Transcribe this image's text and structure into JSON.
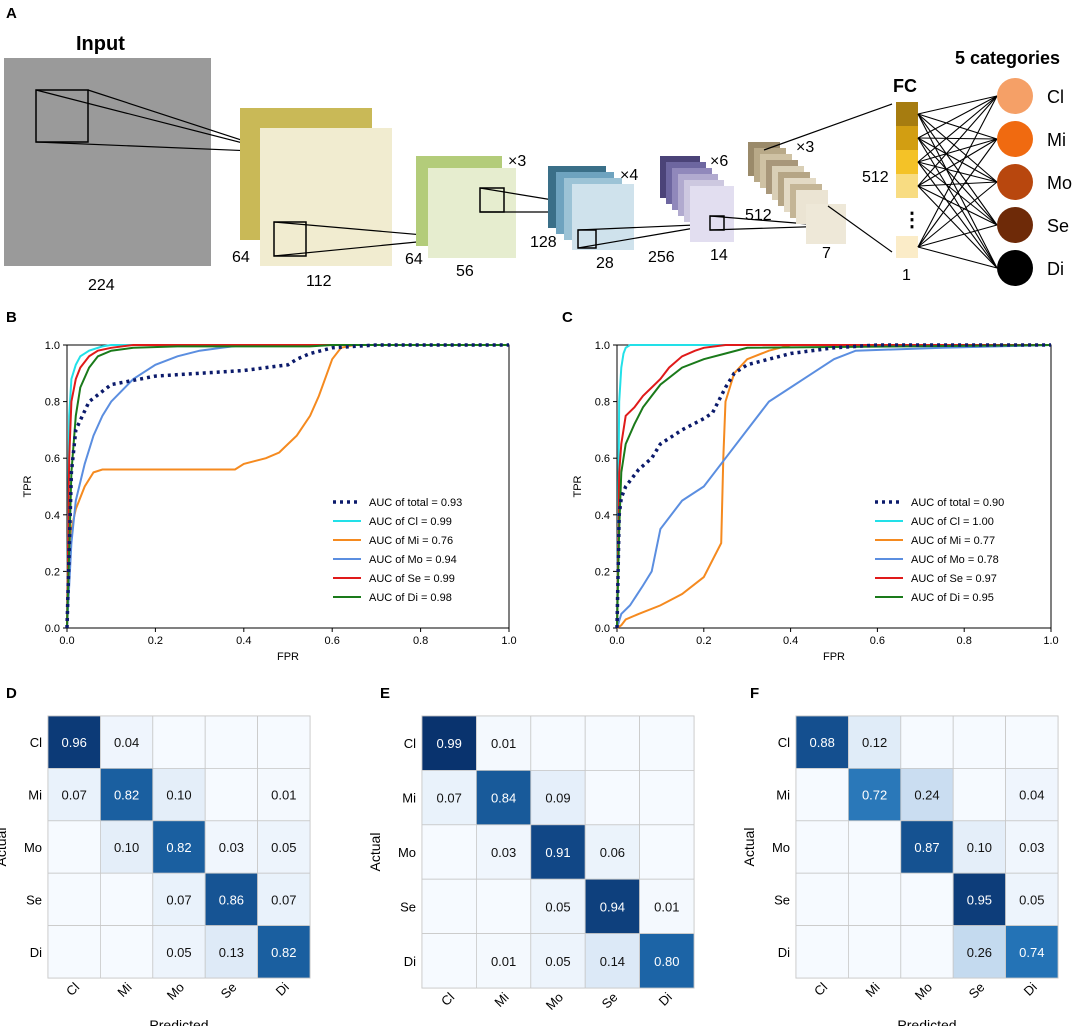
{
  "panels": {
    "A": "A",
    "B": "B",
    "C": "C",
    "D": "D",
    "E": "E",
    "F": "F"
  },
  "architecture": {
    "input_label": "Input",
    "input_size": "224",
    "blocks": [
      {
        "channels": "64",
        "size": "112",
        "mult": ""
      },
      {
        "channels": "64",
        "size": "56",
        "mult": "×3"
      },
      {
        "channels": "128",
        "size": "28",
        "mult": "×4"
      },
      {
        "channels": "256",
        "size": "14",
        "mult": "×6"
      },
      {
        "channels": "512",
        "size": "7",
        "mult": "×3"
      }
    ],
    "fc_label": "FC",
    "fc_top": "512",
    "fc_bottom": "1",
    "fc_dots": "⋮",
    "output_title": "5 categories",
    "outputs": [
      {
        "label": "Cl",
        "color": "#f5a067"
      },
      {
        "label": "Mi",
        "color": "#f06a10"
      },
      {
        "label": "Mo",
        "color": "#b8470e"
      },
      {
        "label": "Se",
        "color": "#6e2a08"
      },
      {
        "label": "Di",
        "color": "#000000"
      }
    ]
  },
  "chart_data": [
    {
      "type": "line",
      "panel": "B",
      "xlabel": "FPR",
      "ylabel": "TPR",
      "xlim": [
        0,
        1
      ],
      "ylim": [
        0,
        1
      ],
      "xticks": [
        "0.0",
        "0.2",
        "0.4",
        "0.6",
        "0.8",
        "1.0"
      ],
      "yticks": [
        "0.0",
        "0.2",
        "0.4",
        "0.6",
        "0.8",
        "1.0"
      ],
      "legend_position": "lower-right",
      "series": [
        {
          "name": "AUC of total = 0.93",
          "color": "#0b1a6b",
          "dashed": true,
          "x": [
            0,
            0.01,
            0.02,
            0.05,
            0.1,
            0.2,
            0.3,
            0.4,
            0.45,
            0.5,
            0.52,
            0.55,
            0.6,
            0.7,
            1.0
          ],
          "y": [
            0,
            0.55,
            0.7,
            0.8,
            0.86,
            0.89,
            0.9,
            0.91,
            0.92,
            0.93,
            0.95,
            0.97,
            0.99,
            1.0,
            1.0
          ]
        },
        {
          "name": "AUC of Cl  = 0.99",
          "color": "#22e0e8",
          "dashed": false,
          "x": [
            0,
            0.005,
            0.01,
            0.02,
            0.03,
            0.05,
            0.08,
            0.1,
            1.0
          ],
          "y": [
            0,
            0.75,
            0.88,
            0.93,
            0.96,
            0.98,
            0.995,
            1.0,
            1.0
          ]
        },
        {
          "name": "AUC of Mi  = 0.76",
          "color": "#f58a1f",
          "dashed": false,
          "x": [
            0,
            0.005,
            0.01,
            0.02,
            0.04,
            0.06,
            0.08,
            0.38,
            0.4,
            0.45,
            0.48,
            0.5,
            0.52,
            0.55,
            0.57,
            0.6,
            0.62,
            0.65,
            1.0
          ],
          "y": [
            0,
            0.22,
            0.35,
            0.42,
            0.5,
            0.55,
            0.56,
            0.56,
            0.58,
            0.6,
            0.62,
            0.65,
            0.68,
            0.75,
            0.82,
            0.95,
            0.99,
            1.0,
            1.0
          ]
        },
        {
          "name": "AUC of Mo  = 0.94",
          "color": "#5b8ee0",
          "dashed": false,
          "x": [
            0,
            0.01,
            0.02,
            0.04,
            0.06,
            0.08,
            0.1,
            0.15,
            0.2,
            0.25,
            0.3,
            0.35,
            0.4,
            1.0
          ],
          "y": [
            0,
            0.3,
            0.45,
            0.58,
            0.68,
            0.75,
            0.8,
            0.88,
            0.93,
            0.96,
            0.98,
            0.99,
            1.0,
            1.0
          ]
        },
        {
          "name": "AUC of Se  = 0.99",
          "color": "#e01a1a",
          "dashed": false,
          "x": [
            0,
            0.005,
            0.01,
            0.02,
            0.03,
            0.05,
            0.07,
            0.1,
            0.15,
            0.18,
            1.0
          ],
          "y": [
            0,
            0.6,
            0.8,
            0.88,
            0.92,
            0.96,
            0.98,
            0.99,
            1.0,
            1.0,
            1.0
          ]
        },
        {
          "name": "AUC of Di  = 0.98",
          "color": "#1a7a1a",
          "dashed": false,
          "x": [
            0,
            0.01,
            0.02,
            0.03,
            0.05,
            0.07,
            0.1,
            0.15,
            0.25,
            0.4,
            0.55,
            0.6,
            1.0
          ],
          "y": [
            0,
            0.55,
            0.75,
            0.85,
            0.92,
            0.96,
            0.98,
            0.99,
            0.995,
            0.995,
            0.995,
            1.0,
            1.0
          ]
        }
      ]
    },
    {
      "type": "line",
      "panel": "C",
      "xlabel": "FPR",
      "ylabel": "TPR",
      "xlim": [
        0,
        1
      ],
      "ylim": [
        0,
        1
      ],
      "xticks": [
        "0.0",
        "0.2",
        "0.4",
        "0.6",
        "0.8",
        "1.0"
      ],
      "yticks": [
        "0.0",
        "0.2",
        "0.4",
        "0.6",
        "0.8",
        "1.0"
      ],
      "legend_position": "lower-right",
      "series": [
        {
          "name": "AUC of total = 0.90",
          "color": "#0b1a6b",
          "dashed": true,
          "x": [
            0,
            0.005,
            0.01,
            0.02,
            0.05,
            0.08,
            0.1,
            0.15,
            0.2,
            0.22,
            0.25,
            0.27,
            0.3,
            0.35,
            0.4,
            0.5,
            0.6,
            1.0
          ],
          "y": [
            0,
            0.4,
            0.46,
            0.5,
            0.56,
            0.6,
            0.65,
            0.7,
            0.74,
            0.76,
            0.85,
            0.9,
            0.93,
            0.95,
            0.97,
            0.99,
            1.0,
            1.0
          ]
        },
        {
          "name": "AUC of Cl  = 1.00",
          "color": "#22e0e8",
          "dashed": false,
          "x": [
            0,
            0.005,
            0.01,
            0.015,
            0.02,
            0.03,
            1.0
          ],
          "y": [
            0,
            0.8,
            0.92,
            0.97,
            0.99,
            1.0,
            1.0
          ]
        },
        {
          "name": "AUC of Mi  = 0.77",
          "color": "#f58a1f",
          "dashed": false,
          "x": [
            0,
            0.01,
            0.02,
            0.05,
            0.1,
            0.15,
            0.2,
            0.24,
            0.245,
            0.25,
            0.27,
            0.3,
            0.35,
            0.4,
            1.0
          ],
          "y": [
            0,
            0.01,
            0.03,
            0.05,
            0.08,
            0.12,
            0.18,
            0.3,
            0.6,
            0.8,
            0.9,
            0.95,
            0.98,
            1.0,
            1.0
          ]
        },
        {
          "name": "AUC of Mo  = 0.78",
          "color": "#5b8ee0",
          "dashed": false,
          "x": [
            0,
            0.01,
            0.03,
            0.06,
            0.08,
            0.1,
            0.15,
            0.2,
            0.25,
            0.3,
            0.35,
            0.4,
            0.45,
            0.5,
            0.55,
            0.75,
            1.0
          ],
          "y": [
            0,
            0.05,
            0.08,
            0.15,
            0.2,
            0.35,
            0.45,
            0.5,
            0.6,
            0.7,
            0.8,
            0.85,
            0.9,
            0.95,
            0.98,
            0.99,
            1.0
          ]
        },
        {
          "name": "AUC of Se  = 0.97",
          "color": "#e01a1a",
          "dashed": false,
          "x": [
            0,
            0.005,
            0.01,
            0.02,
            0.04,
            0.06,
            0.08,
            0.1,
            0.12,
            0.15,
            0.18,
            0.2,
            0.25,
            1.0
          ],
          "y": [
            0,
            0.55,
            0.65,
            0.75,
            0.78,
            0.82,
            0.85,
            0.88,
            0.92,
            0.96,
            0.98,
            0.99,
            1.0,
            1.0
          ]
        },
        {
          "name": "AUC of Di  = 0.95",
          "color": "#1a7a1a",
          "dashed": false,
          "x": [
            0,
            0.005,
            0.01,
            0.02,
            0.04,
            0.06,
            0.08,
            0.1,
            0.15,
            0.2,
            0.25,
            0.3,
            1.0
          ],
          "y": [
            0,
            0.35,
            0.55,
            0.65,
            0.72,
            0.78,
            0.82,
            0.86,
            0.92,
            0.95,
            0.97,
            0.99,
            1.0
          ]
        }
      ]
    },
    {
      "type": "heatmap",
      "panel": "D",
      "xlabel": "Predicted",
      "ylabel": "Actual",
      "labels": [
        "Cl",
        "Mi",
        "Mo",
        "Se",
        "Di"
      ],
      "matrix": [
        [
          0.96,
          0.04,
          null,
          null,
          null
        ],
        [
          0.07,
          0.82,
          0.1,
          null,
          0.01
        ],
        [
          null,
          0.1,
          0.82,
          0.03,
          0.05
        ],
        [
          null,
          null,
          0.07,
          0.86,
          0.07
        ],
        [
          null,
          null,
          0.05,
          0.13,
          0.82
        ]
      ],
      "display": [
        [
          "0.96",
          "0.04",
          "",
          "",
          ""
        ],
        [
          "0.07",
          "0.82",
          "0.10",
          "",
          "0.01"
        ],
        [
          "",
          "0.10",
          "0.82",
          "0.03",
          "0.05"
        ],
        [
          "",
          "",
          "0.07",
          "0.86",
          "0.07"
        ],
        [
          "",
          "",
          "0.05",
          "0.13",
          "0.82"
        ]
      ]
    },
    {
      "type": "heatmap",
      "panel": "E",
      "xlabel": "Predicted",
      "ylabel": "Actual",
      "labels": [
        "Cl",
        "Mi",
        "Mo",
        "Se",
        "Di"
      ],
      "matrix": [
        [
          0.99,
          0.01,
          null,
          null,
          null
        ],
        [
          0.07,
          0.84,
          0.09,
          null,
          null
        ],
        [
          null,
          0.03,
          0.91,
          0.06,
          null
        ],
        [
          null,
          null,
          0.05,
          0.94,
          0.01
        ],
        [
          null,
          0.01,
          0.05,
          0.14,
          0.8
        ]
      ],
      "display": [
        [
          "0.99",
          "0.01",
          "",
          "",
          ""
        ],
        [
          "0.07",
          "0.84",
          "0.09",
          "",
          ""
        ],
        [
          "",
          "0.03",
          "0.91",
          "0.06",
          ""
        ],
        [
          "",
          "",
          "0.05",
          "0.94",
          "0.01"
        ],
        [
          "",
          "0.01",
          "0.05",
          "0.14",
          "0.80"
        ]
      ]
    },
    {
      "type": "heatmap",
      "panel": "F",
      "xlabel": "Predicted",
      "ylabel": "Actual",
      "labels": [
        "Cl",
        "Mi",
        "Mo",
        "Se",
        "Di"
      ],
      "matrix": [
        [
          0.88,
          0.12,
          null,
          null,
          null
        ],
        [
          null,
          0.72,
          0.24,
          null,
          0.04
        ],
        [
          null,
          null,
          0.87,
          0.1,
          0.03
        ],
        [
          null,
          null,
          null,
          0.95,
          0.05
        ],
        [
          null,
          null,
          null,
          0.26,
          0.74
        ]
      ],
      "display": [
        [
          "0.88",
          "0.12",
          "",
          "",
          ""
        ],
        [
          "",
          "0.72",
          "0.24",
          "",
          "0.04"
        ],
        [
          "",
          "",
          "0.87",
          "0.10",
          "0.03"
        ],
        [
          "",
          "",
          "",
          "0.95",
          "0.05"
        ],
        [
          "",
          "",
          "",
          "0.26",
          "0.74"
        ]
      ]
    }
  ]
}
